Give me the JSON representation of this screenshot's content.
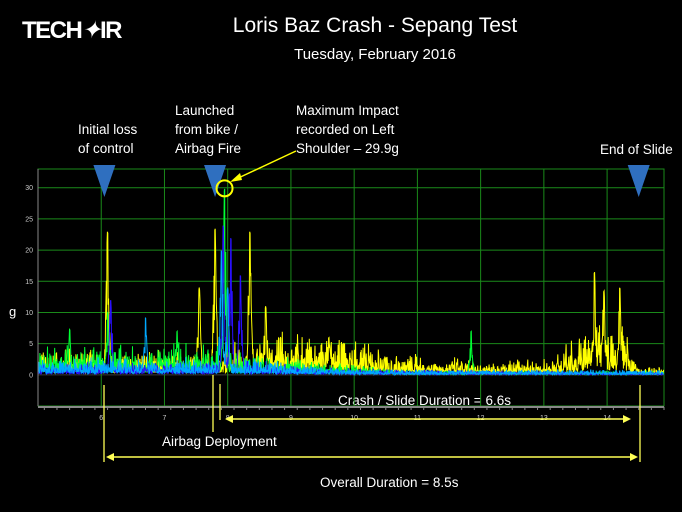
{
  "logo": "TECH AIR",
  "header": {
    "title": "Loris Baz Crash - Sepang Test",
    "subtitle": "Tuesday, February 2016"
  },
  "annotations": {
    "initial_loss": [
      "Initial loss",
      "of control"
    ],
    "launched": [
      "Launched",
      "from bike /",
      "Airbag Fire"
    ],
    "max_impact": [
      "Maximum Impact",
      "recorded on Left",
      "Shoulder – 29.9g"
    ],
    "end_of_slide": "End of Slide",
    "crash_duration": "Crash / Slide Duration = 6.6s",
    "airbag_deployment": "Airbag Deployment",
    "overall_duration": "Overall Duration = 8.5s"
  },
  "chart_data": {
    "type": "line",
    "title": "Loris Baz Crash - Sepang Test",
    "xlabel": "",
    "ylabel": "g",
    "xlim": [
      5.0,
      14.9
    ],
    "ylim": [
      -5,
      33
    ],
    "xticks": [
      "6",
      "7",
      "8",
      "9",
      "10",
      "11",
      "12",
      "13",
      "14"
    ],
    "yticks": [
      "0",
      "5",
      "10",
      "15",
      "20",
      "25",
      "30"
    ],
    "grid": true,
    "markers": {
      "initial_loss_t": 6.05,
      "launch_t": 7.8,
      "end_of_slide_t": 14.5,
      "max_impact": {
        "t": 7.95,
        "g": 29.9
      }
    },
    "series": [
      {
        "name": "channel-yellow",
        "color": "#ffff00",
        "baseline": [
          [
            5.0,
            2
          ],
          [
            7.8,
            2
          ],
          [
            8.5,
            3.5
          ],
          [
            10,
            3
          ],
          [
            10.5,
            2
          ],
          [
            12,
            1.2
          ],
          [
            13,
            1.3
          ],
          [
            13.5,
            3
          ],
          [
            13.8,
            5
          ],
          [
            14.3,
            4
          ],
          [
            14.5,
            0.6
          ],
          [
            14.9,
            0.6
          ]
        ],
        "peaks": [
          [
            6.1,
            23
          ],
          [
            7.55,
            14
          ],
          [
            7.8,
            23.5
          ],
          [
            8.35,
            23
          ],
          [
            8.6,
            11
          ],
          [
            9.6,
            6
          ],
          [
            13.8,
            16.5
          ],
          [
            13.95,
            13.5
          ],
          [
            14.2,
            14
          ]
        ]
      },
      {
        "name": "channel-green",
        "color": "#00ff33",
        "baseline": [
          [
            5.0,
            2.5
          ],
          [
            7.85,
            2.5
          ],
          [
            8.2,
            2
          ],
          [
            10,
            0.8
          ],
          [
            11,
            0.4
          ],
          [
            14.9,
            0.3
          ]
        ],
        "peaks": [
          [
            5.5,
            7.3
          ],
          [
            6.1,
            10
          ],
          [
            7.2,
            7
          ],
          [
            7.95,
            29.9
          ],
          [
            11.85,
            7
          ]
        ]
      },
      {
        "name": "channel-blue",
        "color": "#2a10ff",
        "baseline": [
          [
            5.0,
            1
          ],
          [
            7.8,
            1
          ],
          [
            8.3,
            1.2
          ],
          [
            10,
            0.5
          ],
          [
            14.9,
            0.2
          ]
        ],
        "peaks": [
          [
            6.15,
            12
          ],
          [
            7.93,
            24
          ],
          [
            8.05,
            22
          ],
          [
            8.2,
            16
          ]
        ]
      },
      {
        "name": "channel-cyan",
        "color": "#00a8ff",
        "baseline": [
          [
            5.0,
            1.5
          ],
          [
            7.8,
            1.5
          ],
          [
            8.5,
            1.2
          ],
          [
            10,
            0.5
          ],
          [
            14.9,
            0.4
          ]
        ],
        "peaks": [
          [
            6.7,
            9.2
          ],
          [
            7.9,
            20
          ],
          [
            8.0,
            14
          ]
        ]
      }
    ]
  }
}
